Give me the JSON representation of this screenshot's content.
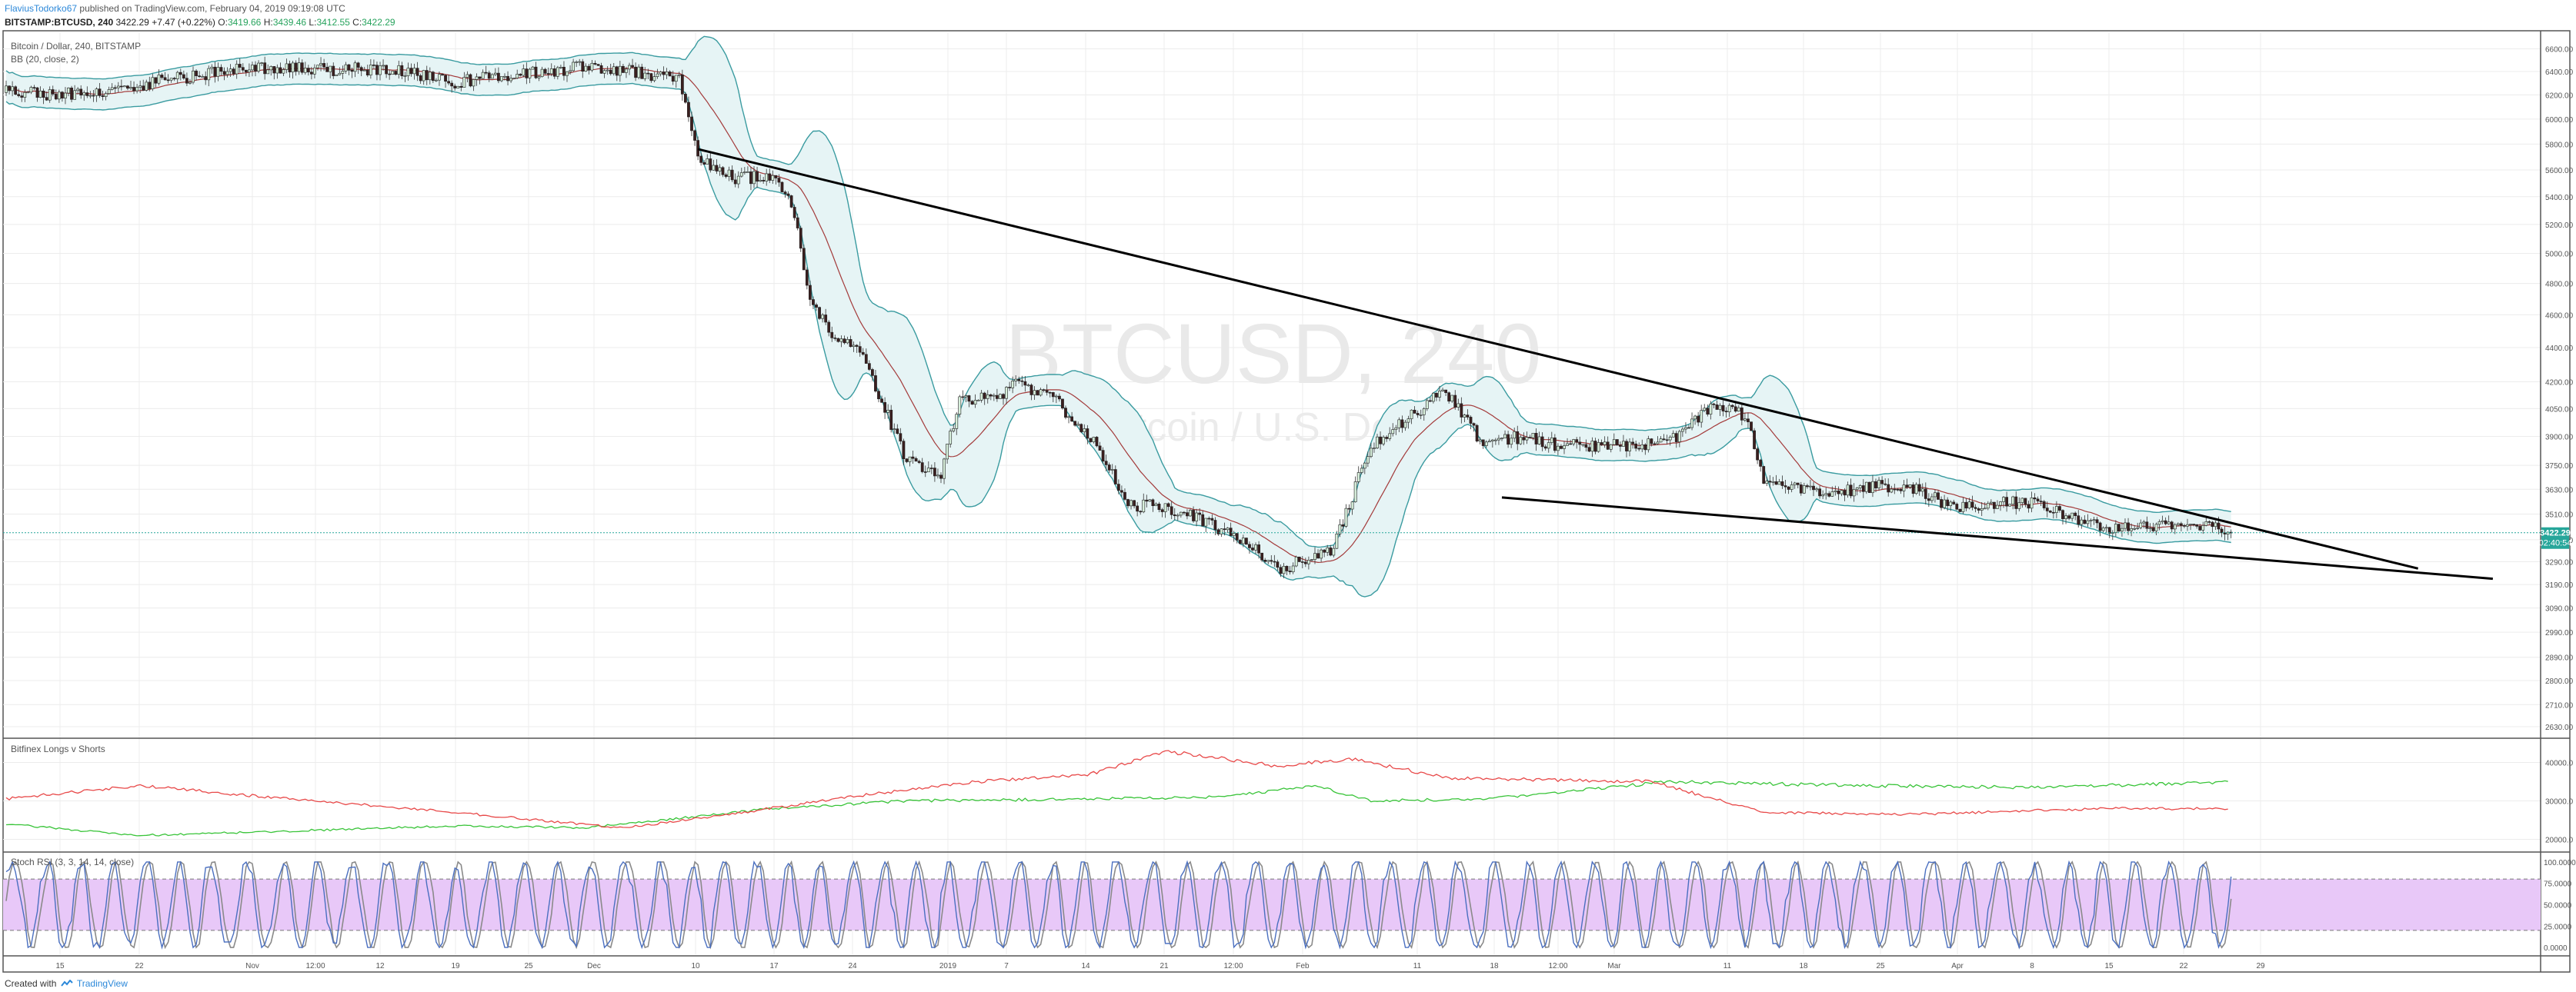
{
  "header": {
    "author": "FlaviusTodorko67",
    "published": "published on TradingView.com, February 04, 2019 09:19:08 UTC",
    "symbol": "BITSTAMP:BTCUSD, 240",
    "last": "3422.29",
    "change": "+7.47 (+0.22%)",
    "o_label": "O:",
    "o": "3419.66",
    "h_label": "H:",
    "h": "3439.46",
    "l_label": "L:",
    "l": "3412.55",
    "c_label": "C:",
    "c": "3422.29"
  },
  "footer": {
    "created_with": "Created with",
    "brand": "TradingView"
  },
  "colors": {
    "background": "#ffffff",
    "grid": "#ececec",
    "axis": "#555555",
    "bb_band": "#3a9ba0",
    "bb_fill": "#e6f4f5",
    "basis": "#a33a3a",
    "longs": "#39c439",
    "shorts": "#e84a4a",
    "stoch_k": "#4a6fc0",
    "stoch_d": "#8a8a8a",
    "stoch_fill": "#e8c8f8",
    "price_tag": "#26a69a",
    "trendline": "#000000"
  },
  "chart_data": [
    {
      "type": "candlestick",
      "title": "Bitcoin / Dollar, 240, BITSTAMP",
      "legend": [
        "Bitcoin / Dollar, 240, BITSTAMP",
        "BB (20, close, 2)"
      ],
      "watermark": "BTCUSD, 240",
      "watermark_sub": "Bitcoin / U.S. Dollar",
      "yscale": "log",
      "ylim": [
        2600,
        6750
      ],
      "y_ticks": [
        "6600.00",
        "6400.00",
        "6200.00",
        "6000.00",
        "5800.00",
        "5600.00",
        "5400.00",
        "5200.00",
        "5000.00",
        "4800.00",
        "4600.00",
        "4400.00",
        "4200.00",
        "4050.00",
        "3900.00",
        "3750.00",
        "3630.00",
        "3510.00",
        "3390.00",
        "3290.00",
        "3190.00",
        "3090.00",
        "2990.00",
        "2890.00",
        "2800.00",
        "2710.00",
        "2630.00"
      ],
      "y_tick_values": [
        6600,
        6400,
        6200,
        6000,
        5800,
        5600,
        5400,
        5200,
        5000,
        4800,
        4600,
        4400,
        4200,
        4050,
        3900,
        3750,
        3630,
        3510,
        3390,
        3290,
        3190,
        3090,
        2990,
        2890,
        2800,
        2710,
        2630
      ],
      "last_price": "3422.29",
      "countdown": "02:40:54",
      "x_ticks": [
        "15",
        "22",
        "Nov",
        "12:00",
        "12",
        "19",
        "25",
        "Dec",
        "10",
        "17",
        "24",
        "2019",
        "7",
        "14",
        "21",
        "12:00",
        "Feb",
        "11",
        "18",
        "12:00",
        "Mar",
        "11",
        "18",
        "25",
        "Apr",
        "8",
        "15",
        "22",
        "29"
      ],
      "anchors": [
        [
          "2018-10-08",
          6220
        ],
        [
          "2018-10-12",
          6200
        ],
        [
          "2018-10-20",
          6420
        ],
        [
          "2018-10-29",
          6420
        ],
        [
          "2018-11-01",
          6310
        ],
        [
          "2018-11-08",
          6440
        ],
        [
          "2018-11-13",
          6350
        ],
        [
          "2018-11-14",
          5700
        ],
        [
          "2018-11-16",
          5530
        ],
        [
          "2018-11-18",
          5560
        ],
        [
          "2018-11-19",
          5350
        ],
        [
          "2018-11-20",
          4700
        ],
        [
          "2018-11-21",
          4500
        ],
        [
          "2018-11-22",
          4450
        ],
        [
          "2018-11-23",
          4300
        ],
        [
          "2018-11-25",
          3800
        ],
        [
          "2018-11-27",
          3700
        ],
        [
          "2018-11-28",
          4100
        ],
        [
          "2018-11-30",
          4100
        ],
        [
          "2018-12-01",
          4200
        ],
        [
          "2018-12-03",
          4100
        ],
        [
          "2018-12-05",
          3900
        ],
        [
          "2018-12-07",
          3550
        ],
        [
          "2018-12-09",
          3550
        ],
        [
          "2018-12-11",
          3480
        ],
        [
          "2018-12-13",
          3400
        ],
        [
          "2018-12-15",
          3250
        ],
        [
          "2018-12-18",
          3350
        ],
        [
          "2018-12-19",
          3600
        ],
        [
          "2018-12-20",
          3850
        ],
        [
          "2018-12-22",
          4000
        ],
        [
          "2018-12-24",
          4150
        ],
        [
          "2018-12-26",
          3850
        ],
        [
          "2018-12-28",
          3900
        ],
        [
          "2018-12-30",
          3850
        ],
        [
          "2019-01-02",
          3850
        ],
        [
          "2019-01-05",
          3870
        ],
        [
          "2019-01-07",
          4050
        ],
        [
          "2019-01-09",
          4020
        ],
        [
          "2019-01-10",
          3650
        ],
        [
          "2019-01-14",
          3620
        ],
        [
          "2019-01-16",
          3650
        ],
        [
          "2019-01-18",
          3630
        ],
        [
          "2019-01-20",
          3550
        ],
        [
          "2019-01-24",
          3570
        ],
        [
          "2019-01-28",
          3450
        ],
        [
          "2019-01-31",
          3450
        ],
        [
          "2019-02-02",
          3470
        ],
        [
          "2019-02-04",
          3422
        ]
      ],
      "bands": {
        "width_ratio": 0.06
      },
      "annotations": [
        {
          "type": "trendline",
          "from": [
            "2018-11-14",
            5760
          ],
          "to": [
            "2019-02-14",
            3260
          ]
        },
        {
          "type": "trendline",
          "from": [
            "2018-12-27",
            3590
          ],
          "to": [
            "2019-02-18",
            3215
          ]
        }
      ]
    },
    {
      "type": "line",
      "title": "Bitfinex Longs v Shorts",
      "y_ticks": [
        "40000.0",
        "30000.0",
        "20000.0"
      ],
      "y_tick_values": [
        40000,
        30000,
        20000
      ],
      "ylim": [
        17500,
        45500
      ],
      "series": [
        {
          "name": "Longs",
          "anchors": [
            [
              "2018-10-08",
              24000
            ],
            [
              "2018-10-15",
              21000
            ],
            [
              "2018-10-22",
              22000
            ],
            [
              "2018-11-01",
              23500
            ],
            [
              "2018-11-08",
              23000
            ],
            [
              "2018-11-13",
              25500
            ],
            [
              "2018-11-18",
              28000
            ],
            [
              "2018-11-25",
              30000
            ],
            [
              "2018-12-05",
              30500
            ],
            [
              "2018-12-12",
              31000
            ],
            [
              "2018-12-17",
              34000
            ],
            [
              "2018-12-20",
              30000
            ],
            [
              "2018-12-26",
              30500
            ],
            [
              "2019-01-05",
              35000
            ],
            [
              "2019-01-15",
              34000
            ],
            [
              "2019-01-25",
              33500
            ],
            [
              "2019-02-04",
              35000
            ]
          ]
        },
        {
          "name": "Shorts",
          "anchors": [
            [
              "2018-10-08",
              30500
            ],
            [
              "2018-10-15",
              34000
            ],
            [
              "2018-10-22",
              31000
            ],
            [
              "2018-11-01",
              27000
            ],
            [
              "2018-11-10",
              23000
            ],
            [
              "2018-11-15",
              26000
            ],
            [
              "2018-11-22",
              31000
            ],
            [
              "2018-11-29",
              35000
            ],
            [
              "2018-12-05",
              37000
            ],
            [
              "2018-12-09",
              43000
            ],
            [
              "2018-12-15",
              39000
            ],
            [
              "2018-12-19",
              41000
            ],
            [
              "2018-12-24",
              36000
            ],
            [
              "2019-01-04",
              35000
            ],
            [
              "2019-01-10",
              27000
            ],
            [
              "2019-01-18",
              26500
            ],
            [
              "2019-01-28",
              28000
            ],
            [
              "2019-02-04",
              28000
            ]
          ]
        }
      ]
    },
    {
      "type": "line",
      "title": "Stoch RSI (3, 3, 14, 14, close)",
      "y_ticks": [
        "100.0000",
        "75.0000",
        "50.0000",
        "25.0000",
        "0.0000"
      ],
      "y_tick_values": [
        100,
        75,
        50,
        25,
        0
      ],
      "ylim": [
        -8,
        108
      ],
      "band": [
        20,
        80
      ],
      "series": [
        {
          "name": "K"
        },
        {
          "name": "D"
        }
      ]
    }
  ]
}
